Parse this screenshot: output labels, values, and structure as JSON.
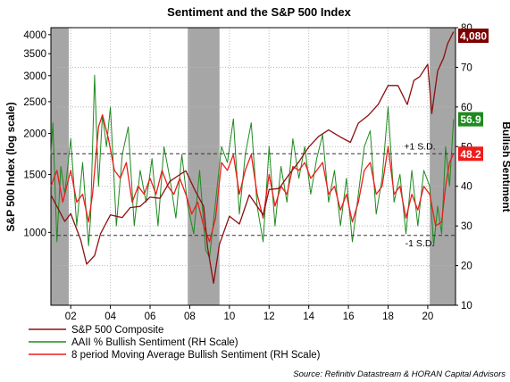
{
  "chart_data": {
    "type": "line",
    "title": "Sentiment and the S&P 500 Index",
    "ylabel_left": "S&P 500 Index (log scale)",
    "ylabel_right": "Bullish Sentiment",
    "source": "Source: Refinitiv Datastream & HORAN Capital Advisors",
    "x_range": [
      2001,
      2021.4
    ],
    "x_ticks": [
      "02",
      "04",
      "06",
      "08",
      "10",
      "12",
      "14",
      "16",
      "18",
      "20"
    ],
    "left_axis": {
      "scale": "log",
      "range": [
        600,
        4200
      ],
      "ticks": [
        "1000",
        "1500",
        "2000",
        "2500",
        "3000",
        "3500",
        "4000"
      ]
    },
    "right_axis": {
      "range": [
        10,
        80
      ],
      "ticks": [
        "10",
        "20",
        "30",
        "40",
        "50",
        "60",
        "70",
        "80"
      ]
    },
    "recessions": [
      [
        2001.0,
        2001.9
      ],
      [
        2007.9,
        2009.5
      ],
      [
        2020.1,
        2021.4
      ]
    ],
    "reference_lines": [
      {
        "label": "+1 S.D.",
        "value": 48.2
      },
      {
        "label": "-1 S.D.",
        "value": 27.6
      }
    ],
    "badges": [
      {
        "text": "4,080",
        "color": "#7b0000",
        "axis": "left",
        "value": 4080
      },
      {
        "text": "56.9",
        "color": "#1f8a1f",
        "axis": "right",
        "value": 56.9
      },
      {
        "text": "48.2",
        "color": "#ee1c1c",
        "axis": "right",
        "value": 48.2
      }
    ],
    "legend": [
      {
        "label": "S&P 500 Composite",
        "color": "#8b1010"
      },
      {
        "label": "AAII % Bullish Sentiment (RH Scale)",
        "color": "#1f8a1f"
      },
      {
        "label": "8 period Moving Average Bullish Sentiment (RH Scale)",
        "color": "#ee1c1c"
      }
    ],
    "series": [
      {
        "name": "S&P 500 Composite",
        "axis": "left",
        "color": "#8b1010",
        "x": [
          2001.0,
          2001.7,
          2002.0,
          2002.5,
          2002.8,
          2003.2,
          2003.5,
          2004.0,
          2004.6,
          2005.0,
          2005.5,
          2006.0,
          2006.5,
          2007.0,
          2007.5,
          2007.8,
          2008.3,
          2008.7,
          2008.9,
          2009.2,
          2009.5,
          2010.0,
          2010.5,
          2011.0,
          2011.7,
          2012.0,
          2012.5,
          2013.0,
          2013.5,
          2014.0,
          2014.5,
          2015.0,
          2015.6,
          2016.1,
          2016.5,
          2017.0,
          2017.5,
          2018.0,
          2018.5,
          2018.97,
          2019.3,
          2019.6,
          2020.0,
          2020.2,
          2020.5,
          2020.8,
          2021.0,
          2021.3
        ],
        "y": [
          1300,
          1080,
          1140,
          950,
          800,
          850,
          990,
          1130,
          1110,
          1190,
          1200,
          1280,
          1270,
          1430,
          1500,
          1540,
          1330,
          1200,
          900,
          700,
          920,
          1120,
          1060,
          1300,
          1130,
          1350,
          1360,
          1500,
          1640,
          1820,
          1960,
          2050,
          1950,
          1880,
          2150,
          2270,
          2450,
          2800,
          2800,
          2450,
          2900,
          2980,
          3250,
          2300,
          3100,
          3400,
          3750,
          4080
        ]
      },
      {
        "name": "AAII % Bullish Sentiment (RH Scale)",
        "axis": "right",
        "color": "#1f8a1f",
        "x": [
          2001.0,
          2001.1,
          2001.3,
          2001.5,
          2001.7,
          2002.0,
          2002.3,
          2002.6,
          2002.9,
          2003.0,
          2003.2,
          2003.4,
          2003.6,
          2003.8,
          2004.0,
          2004.3,
          2004.6,
          2004.9,
          2005.2,
          2005.5,
          2005.8,
          2006.1,
          2006.4,
          2006.7,
          2007.0,
          2007.3,
          2007.6,
          2007.9,
          2008.2,
          2008.5,
          2008.8,
          2009.0,
          2009.3,
          2009.6,
          2009.9,
          2010.2,
          2010.5,
          2010.8,
          2011.1,
          2011.4,
          2011.7,
          2012.0,
          2012.3,
          2012.6,
          2012.9,
          2013.2,
          2013.5,
          2013.8,
          2014.1,
          2014.4,
          2014.7,
          2015.0,
          2015.3,
          2015.6,
          2015.9,
          2016.2,
          2016.5,
          2016.8,
          2017.1,
          2017.4,
          2017.7,
          2018.0,
          2018.3,
          2018.6,
          2018.9,
          2019.2,
          2019.5,
          2019.8,
          2020.1,
          2020.3,
          2020.5,
          2020.7,
          2020.9,
          2021.1,
          2021.3
        ],
        "y": [
          48,
          56,
          26,
          45,
          38,
          52,
          30,
          46,
          25,
          32,
          68,
          40,
          58,
          50,
          60,
          30,
          48,
          55,
          30,
          44,
          36,
          47,
          30,
          50,
          42,
          32,
          48,
          35,
          28,
          44,
          24,
          22,
          36,
          50,
          46,
          57,
          33,
          48,
          56,
          35,
          26,
          50,
          30,
          45,
          36,
          52,
          42,
          50,
          38,
          47,
          53,
          36,
          44,
          30,
          42,
          26,
          38,
          50,
          54,
          33,
          42,
          60,
          36,
          43,
          28,
          44,
          30,
          44,
          40,
          25,
          35,
          28,
          50,
          40,
          56.9
        ]
      },
      {
        "name": "8 period Moving Average Bullish Sentiment (RH Scale)",
        "axis": "right",
        "color": "#ee1c1c",
        "x": [
          2001.0,
          2001.3,
          2001.6,
          2002.0,
          2002.3,
          2002.6,
          2002.9,
          2003.1,
          2003.4,
          2003.6,
          2003.9,
          2004.2,
          2004.5,
          2004.8,
          2005.1,
          2005.4,
          2005.7,
          2006.0,
          2006.3,
          2006.6,
          2006.9,
          2007.2,
          2007.5,
          2007.8,
          2008.1,
          2008.4,
          2008.7,
          2009.0,
          2009.3,
          2009.6,
          2009.9,
          2010.2,
          2010.5,
          2010.8,
          2011.1,
          2011.4,
          2011.7,
          2012.0,
          2012.3,
          2012.6,
          2012.9,
          2013.2,
          2013.5,
          2013.8,
          2014.1,
          2014.4,
          2014.7,
          2015.0,
          2015.3,
          2015.6,
          2015.9,
          2016.2,
          2016.5,
          2016.8,
          2017.1,
          2017.4,
          2017.7,
          2018.0,
          2018.3,
          2018.6,
          2018.9,
          2019.2,
          2019.5,
          2019.8,
          2020.1,
          2020.4,
          2020.7,
          2020.9,
          2021.1,
          2021.3
        ],
        "y": [
          40,
          44,
          36,
          44,
          36,
          38,
          31,
          38,
          55,
          58,
          52,
          44,
          42,
          46,
          36,
          40,
          38,
          42,
          38,
          44,
          40,
          38,
          42,
          38,
          33,
          36,
          30,
          26,
          32,
          46,
          44,
          48,
          38,
          44,
          48,
          38,
          32,
          43,
          35,
          40,
          38,
          45,
          44,
          46,
          42,
          44,
          46,
          38,
          40,
          34,
          38,
          31,
          36,
          44,
          46,
          38,
          40,
          50,
          38,
          40,
          32,
          38,
          34,
          40,
          38,
          30,
          31,
          40,
          46,
          48.2
        ]
      }
    ]
  }
}
